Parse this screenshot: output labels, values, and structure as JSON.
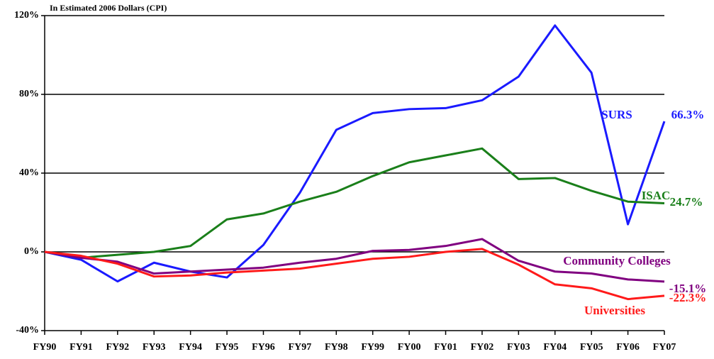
{
  "chart_data": {
    "type": "line",
    "subtitle": "In Estimated 2006 Dollars (CPI)",
    "categories": [
      "FY90",
      "FY91",
      "FY92",
      "FY93",
      "FY94",
      "FY95",
      "FY96",
      "FY97",
      "FY98",
      "FY99",
      "FY00",
      "FY01",
      "FY02",
      "FY03",
      "FY04",
      "FY05",
      "FY06",
      "FY07"
    ],
    "series": [
      {
        "name": "SURS",
        "color": "#1a1aff",
        "values": [
          0,
          -4,
          -15,
          -5.5,
          -10,
          -13,
          3.5,
          30,
          62,
          70.5,
          72.5,
          73,
          77,
          89,
          115,
          91,
          14,
          66.3
        ],
        "value_labels": [
          null,
          null,
          null,
          null,
          null,
          null,
          null,
          null,
          null,
          null,
          null,
          null,
          null,
          null,
          null,
          null,
          null,
          "66.3%"
        ]
      },
      {
        "name": "ISAC",
        "color": "#1a7f1a",
        "values": [
          0,
          -3,
          -1.5,
          0,
          3,
          16.5,
          19.5,
          25.5,
          30.5,
          38.5,
          45.5,
          49,
          52.5,
          37,
          37.5,
          31,
          25.5,
          24.7
        ],
        "value_labels": [
          null,
          null,
          null,
          null,
          null,
          null,
          null,
          null,
          null,
          null,
          null,
          null,
          null,
          null,
          null,
          null,
          null,
          "24.7%"
        ]
      },
      {
        "name": "Community Colleges",
        "color": "#800080",
        "values": [
          0,
          -3,
          -5,
          -11,
          -10,
          -9,
          -8,
          -5.5,
          -3.5,
          0.5,
          1,
          3,
          6.5,
          -4.5,
          -10,
          -11,
          -14,
          -15.1
        ],
        "value_labels": [
          null,
          null,
          null,
          null,
          null,
          null,
          null,
          null,
          null,
          null,
          null,
          null,
          null,
          null,
          null,
          null,
          null,
          "-15.1%"
        ]
      },
      {
        "name": "Universities",
        "color": "#ff1a1a",
        "values": [
          0,
          -2,
          -6,
          -12.5,
          -12,
          -10.5,
          -9.5,
          -8.5,
          -6,
          -3.5,
          -2.5,
          0,
          1.5,
          -6.5,
          -16.5,
          -18.5,
          -24,
          -22.3
        ],
        "value_labels": [
          null,
          null,
          null,
          null,
          null,
          null,
          null,
          null,
          null,
          null,
          null,
          null,
          null,
          null,
          null,
          null,
          null,
          "-22.3%"
        ]
      }
    ],
    "ylim": [
      -40,
      120
    ],
    "yticks": [
      {
        "value": -40,
        "label": "-40%"
      },
      {
        "value": 0,
        "label": "0%"
      },
      {
        "value": 40,
        "label": "40%"
      },
      {
        "value": 80,
        "label": "80%"
      },
      {
        "value": 120,
        "label": "120%"
      }
    ],
    "grid": true
  }
}
